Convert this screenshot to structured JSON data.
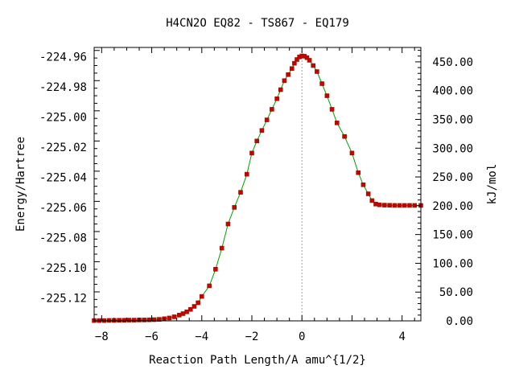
{
  "chart_data": {
    "type": "line",
    "title": "H4CN2O   EQ82 - TS867 - EQ179",
    "xlabel": "Reaction Path Length/A amu^{1/2}",
    "ylabel": "Energy/Hartree",
    "y2label": "kJ/mol",
    "xlim": [
      -8.3,
      4.75
    ],
    "ylim": [
      -225.1352,
      -224.954
    ],
    "y2lim": [
      0.0,
      475.0
    ],
    "x_ticks": [
      -8,
      -6,
      -4,
      -2,
      0,
      4
    ],
    "x_tick_labels": [
      "−8",
      "−6",
      "−4",
      "−2",
      "0",
      "4"
    ],
    "y_ticks": [
      -224.96,
      -224.98,
      -225.0,
      -225.02,
      -225.04,
      -225.06,
      -225.08,
      -225.1,
      -225.12
    ],
    "y_tick_labels": [
      "-224.96",
      "-224.98",
      "-225.00",
      "-225.02",
      "-225.04",
      "-225.06",
      "-225.08",
      "-225.10",
      "-225.12"
    ],
    "y2_ticks": [
      0,
      50,
      100,
      150,
      200,
      250,
      300,
      350,
      400,
      450
    ],
    "y2_tick_labels": [
      "0.00",
      "50.00",
      "100.00",
      "150.00",
      "200.00",
      "250.00",
      "300.00",
      "350.00",
      "400.00",
      "450.00"
    ],
    "transition_state_x": 0.0,
    "grid": false,
    "colors": {
      "line": "#00a000",
      "marker": "#cc0000",
      "marker_edge": "#8b1a00",
      "ts_line": "#a0a0a0"
    },
    "series": [
      {
        "values_x": [
          -8.3,
          -8.1,
          -7.9,
          -7.7,
          -7.5,
          -7.3,
          -7.1,
          -6.9,
          -6.7,
          -6.5,
          -6.3,
          -6.1,
          -5.9,
          -5.7,
          -5.5,
          -5.3,
          -5.1,
          -4.9,
          -4.75,
          -4.6,
          -4.45,
          -4.3,
          -4.15,
          -4.0,
          -3.7,
          -3.45,
          -3.2,
          -2.95,
          -2.7,
          -2.45,
          -2.2,
          -2.0,
          -1.8,
          -1.6,
          -1.4,
          -1.2,
          -1.0,
          -0.85,
          -0.7,
          -0.55,
          -0.4,
          -0.3,
          -0.2,
          -0.1,
          0.0,
          0.1,
          0.2,
          0.3,
          0.45,
          0.6,
          0.8,
          1.0,
          1.2,
          1.4,
          1.7,
          2.0,
          2.25,
          2.45,
          2.65,
          2.8,
          2.95,
          3.1,
          3.3,
          3.5,
          3.7,
          3.9,
          4.1,
          4.3,
          4.5,
          4.75
        ],
        "values_y": [
          -225.135,
          -225.135,
          -225.135,
          -225.1349,
          -225.1349,
          -225.1348,
          -225.1348,
          -225.1347,
          -225.1347,
          -225.1346,
          -225.1346,
          -225.1345,
          -225.1344,
          -225.1342,
          -225.1338,
          -225.1333,
          -225.1325,
          -225.1314,
          -225.1304,
          -225.1292,
          -225.1276,
          -225.1256,
          -225.1232,
          -225.119,
          -225.112,
          -225.101,
          -225.087,
          -225.071,
          -225.06,
          -225.05,
          -225.038,
          -225.024,
          -225.016,
          -225.009,
          -225.002,
          -224.995,
          -224.988,
          -224.982,
          -224.976,
          -224.972,
          -224.968,
          -224.9645,
          -224.962,
          -224.9603,
          -224.9596,
          -224.9598,
          -224.9608,
          -224.9625,
          -224.966,
          -224.97,
          -224.978,
          -224.986,
          -224.995,
          -225.004,
          -225.013,
          -225.024,
          -225.037,
          -225.045,
          -225.051,
          -225.0555,
          -225.0578,
          -225.0583,
          -225.0585,
          -225.0586,
          -225.0587,
          -225.0587,
          -225.0587,
          -225.0587,
          -225.0587,
          -225.0587
        ]
      }
    ]
  }
}
